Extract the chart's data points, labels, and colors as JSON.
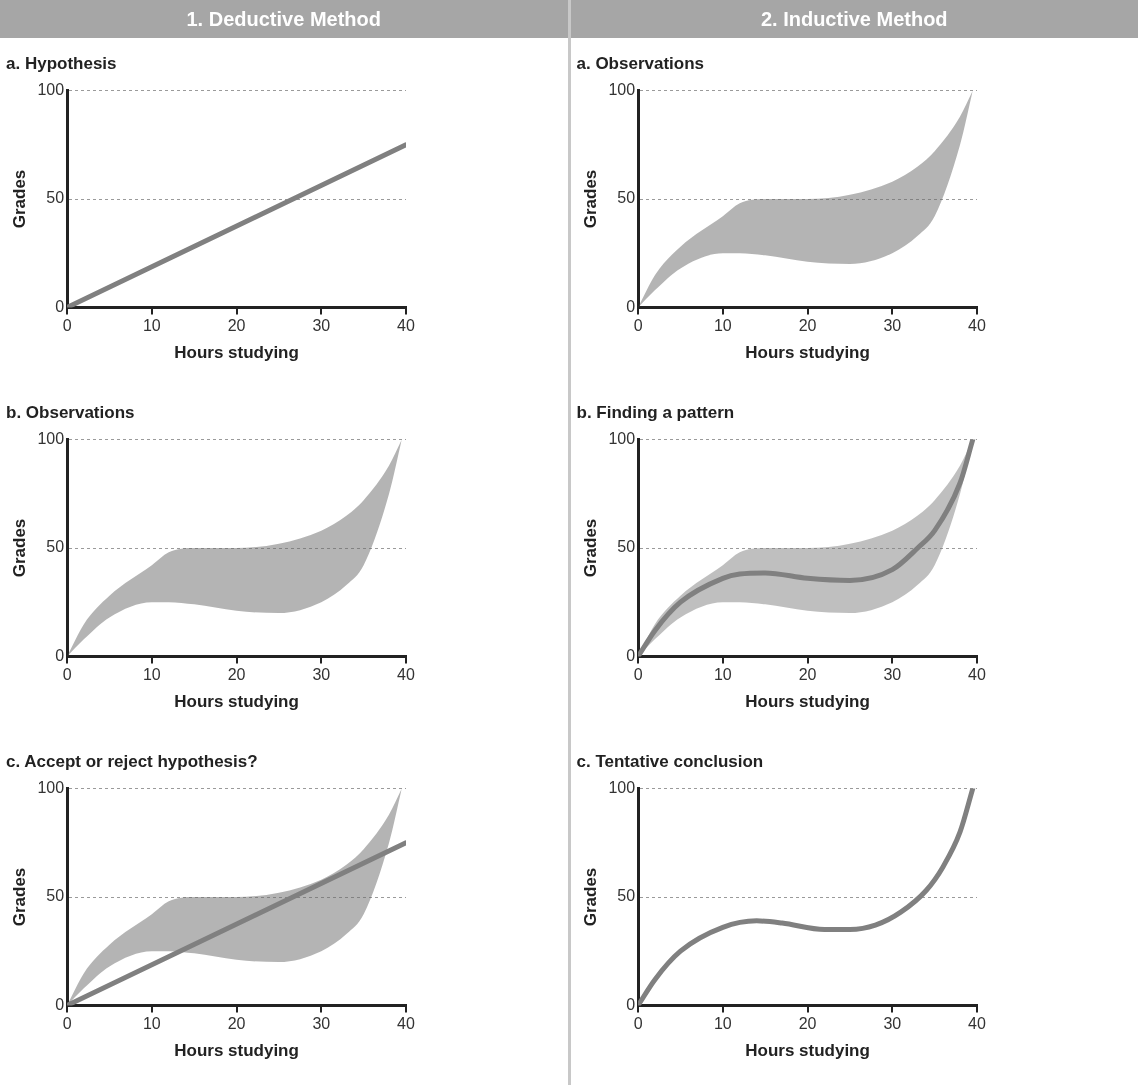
{
  "chart_data": [
    {
      "type": "line",
      "title": "a. Hypothesis",
      "annotations": [
        "1. Deductive Method"
      ],
      "xlabel": "Hours studying",
      "ylabel": "Grades",
      "xlim": [
        0,
        40
      ],
      "ylim": [
        0,
        100
      ],
      "xticks": [
        0,
        10,
        20,
        30,
        40
      ],
      "yticks": [
        0,
        50,
        100
      ],
      "grid": "y",
      "legend": false,
      "marker": "none",
      "line_style": "solid",
      "series": [
        {
          "type": "line",
          "color": "#808080",
          "x": [
            0,
            40
          ],
          "values": [
            0,
            75
          ]
        }
      ]
    },
    {
      "type": "line",
      "title": "b. Observations",
      "xlabel": "Hours studying",
      "ylabel": "Grades",
      "xlim": [
        0,
        40
      ],
      "ylim": [
        0,
        100
      ],
      "xticks": [
        0,
        10,
        20,
        30,
        40
      ],
      "yticks": [
        0,
        50,
        100
      ],
      "grid": "y",
      "legend": false,
      "marker": "none",
      "line_style": "solid",
      "series": [
        {
          "type": "line",
          "color": "#696969",
          "x": [
            0,
            2,
            5,
            10,
            12,
            15,
            20,
            25,
            30,
            33,
            35,
            38,
            39.5
          ],
          "values": [
            null,
            null,
            null,
            null,
            null,
            null,
            null,
            null,
            null,
            null,
            null,
            null,
            null
          ],
          "lower": [
            0,
            8,
            18,
            25,
            25,
            24,
            21,
            20,
            25,
            33,
            42,
            75,
            100
          ],
          "upper": [
            0,
            15,
            28,
            42,
            48,
            50,
            50,
            52,
            58,
            65,
            72,
            88,
            100
          ]
        }
      ]
    },
    {
      "type": "line",
      "title": "c. Accept or reject hypothesis?",
      "xlabel": "Hours studying",
      "ylabel": "Grades",
      "xlim": [
        0,
        40
      ],
      "ylim": [
        0,
        100
      ],
      "xticks": [
        0,
        10,
        20,
        30,
        40
      ],
      "yticks": [
        0,
        50,
        100
      ],
      "grid": "y",
      "legend": false,
      "marker": "none",
      "line_style": "solid",
      "series": [
        {
          "type": "line",
          "color": "#696969",
          "x": [
            0,
            2,
            5,
            10,
            12,
            15,
            20,
            25,
            30,
            33,
            35,
            38,
            39.5
          ],
          "values": [
            null,
            null,
            null,
            null,
            null,
            null,
            null,
            null,
            null,
            null,
            null,
            null,
            null
          ],
          "lower": [
            0,
            8,
            18,
            25,
            25,
            24,
            21,
            20,
            25,
            33,
            42,
            75,
            100
          ],
          "upper": [
            0,
            15,
            28,
            42,
            48,
            50,
            50,
            52,
            58,
            65,
            72,
            88,
            100
          ]
        },
        {
          "type": "line",
          "color": "#808080",
          "x": [
            0,
            40
          ],
          "values": [
            0,
            75
          ]
        }
      ]
    },
    {
      "type": "line",
      "title": "a. Observations",
      "annotations": [
        "2. Inductive Method"
      ],
      "xlabel": "Hours studying",
      "ylabel": "Grades",
      "xlim": [
        0,
        40
      ],
      "ylim": [
        0,
        100
      ],
      "xticks": [
        0,
        10,
        20,
        30,
        40
      ],
      "yticks": [
        0,
        50,
        100
      ],
      "grid": "y",
      "legend": false,
      "marker": "none",
      "line_style": "solid",
      "series": [
        {
          "type": "line",
          "color": "#696969",
          "x": [
            0,
            2,
            5,
            10,
            12,
            15,
            20,
            25,
            30,
            33,
            35,
            38,
            39.5
          ],
          "values": [
            null,
            null,
            null,
            null,
            null,
            null,
            null,
            null,
            null,
            null,
            null,
            null,
            null
          ],
          "lower": [
            0,
            8,
            18,
            25,
            25,
            24,
            21,
            20,
            25,
            33,
            42,
            75,
            100
          ],
          "upper": [
            0,
            15,
            28,
            42,
            48,
            50,
            50,
            52,
            58,
            65,
            72,
            88,
            100
          ]
        }
      ]
    },
    {
      "type": "line",
      "title": "b. Finding a pattern",
      "xlabel": "Hours studying",
      "ylabel": "Grades",
      "xlim": [
        0,
        40
      ],
      "ylim": [
        0,
        100
      ],
      "xticks": [
        0,
        10,
        20,
        30,
        40
      ],
      "yticks": [
        0,
        50,
        100
      ],
      "grid": "y",
      "legend": false,
      "marker": "none",
      "line_style": "solid",
      "series": [
        {
          "type": "line",
          "color": "#808080",
          "x": [
            0,
            2,
            5,
            10,
            12,
            15,
            20,
            25,
            30,
            33,
            35,
            38,
            39.5
          ],
          "values": [
            0,
            12,
            25,
            36,
            38,
            38.5,
            36,
            35,
            40,
            50,
            58,
            80,
            100
          ],
          "lower": [
            0,
            8,
            18,
            25,
            25,
            24,
            21,
            20,
            25,
            33,
            42,
            75,
            100
          ],
          "upper": [
            0,
            15,
            28,
            42,
            48,
            50,
            50,
            52,
            58,
            65,
            72,
            88,
            100
          ]
        }
      ]
    },
    {
      "type": "line",
      "title": "c. Tentative conclusion",
      "xlabel": "Hours studying",
      "ylabel": "Grades",
      "xlim": [
        0,
        40
      ],
      "ylim": [
        0,
        100
      ],
      "xticks": [
        0,
        10,
        20,
        30,
        40
      ],
      "yticks": [
        0,
        50,
        100
      ],
      "grid": "y",
      "legend": false,
      "marker": "none",
      "line_style": "solid",
      "series": [
        {
          "type": "line",
          "color": "#808080",
          "x": [
            0,
            2,
            5,
            10,
            14,
            17,
            22,
            25,
            28,
            31,
            34,
            36,
            38,
            39.5
          ],
          "values": [
            0,
            12,
            25,
            36,
            39,
            38,
            35,
            35,
            37,
            43,
            53,
            64,
            80,
            100
          ]
        }
      ]
    }
  ]
}
